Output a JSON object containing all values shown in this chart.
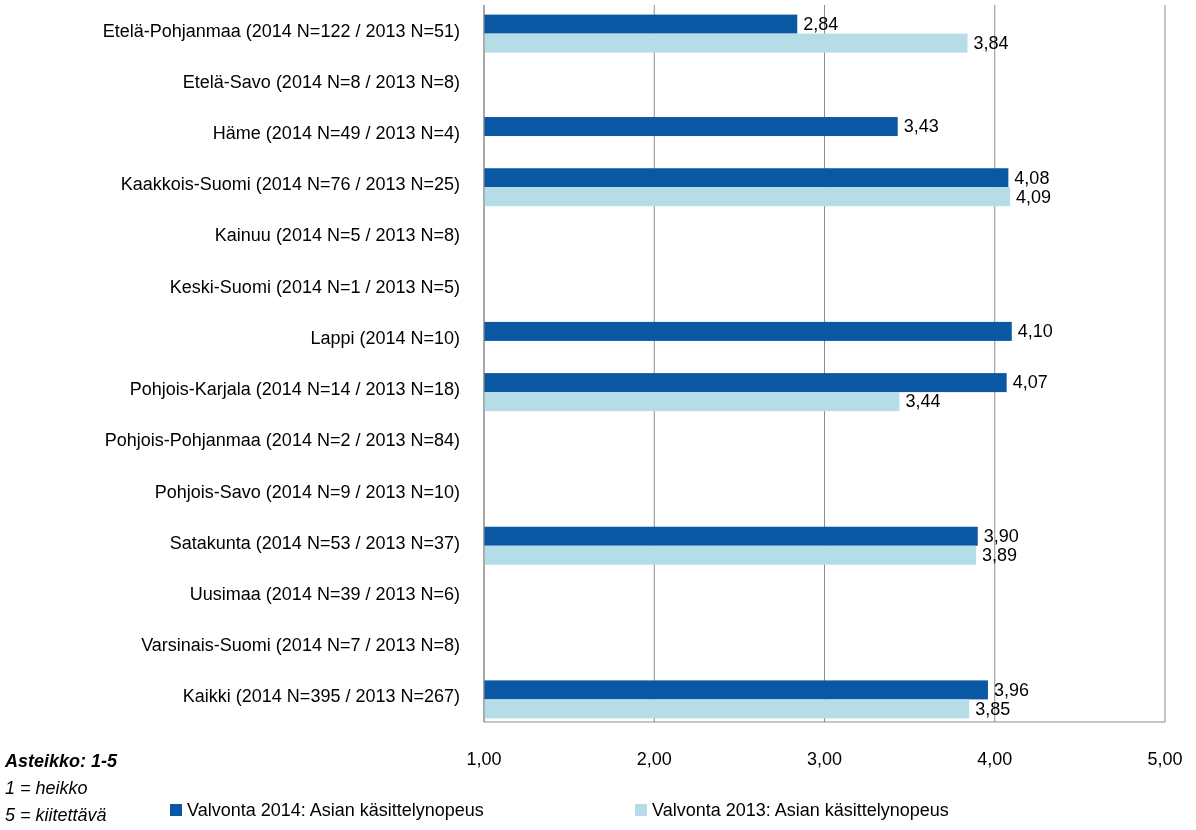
{
  "chart_data": {
    "type": "bar",
    "orientation": "horizontal",
    "categories": [
      "Etelä-Pohjanmaa (2014 N=122 / 2013 N=51)",
      "Etelä-Savo (2014 N=8 / 2013 N=8)",
      "Häme (2014 N=49 / 2013 N=4)",
      "Kaakkois-Suomi (2014 N=76 / 2013 N=25)",
      "Kainuu (2014 N=5 / 2013 N=8)",
      "Keski-Suomi (2014 N=1 / 2013 N=5)",
      "Lappi (2014 N=10)",
      "Pohjois-Karjala (2014 N=14 / 2013 N=18)",
      "Pohjois-Pohjanmaa (2014 N=2 / 2013 N=84)",
      "Pohjois-Savo (2014 N=9 / 2013 N=10)",
      "Satakunta (2014 N=53 / 2013 N=37)",
      "Uusimaa (2014 N=39 / 2013 N=6)",
      "Varsinais-Suomi (2014 N=7 / 2013 N=8)",
      "Kaikki (2014 N=395 / 2013 N=267)"
    ],
    "series": [
      {
        "name": "Valvonta 2014: Asian käsittelynopeus",
        "color": "#0a57a4",
        "values": [
          2.84,
          null,
          3.43,
          4.08,
          null,
          null,
          4.1,
          4.07,
          null,
          null,
          3.9,
          null,
          null,
          3.96
        ],
        "value_labels": [
          "2,84",
          null,
          "3,43",
          "4,08",
          null,
          null,
          "4,10",
          "4,07",
          null,
          null,
          "3,90",
          null,
          null,
          "3,96"
        ]
      },
      {
        "name": "Valvonta 2013: Asian käsittelynopeus",
        "color": "#b4dde8",
        "values": [
          3.84,
          null,
          null,
          4.09,
          null,
          null,
          null,
          3.44,
          null,
          null,
          3.89,
          null,
          null,
          3.85
        ],
        "value_labels": [
          "3,84",
          null,
          null,
          "4,09",
          null,
          null,
          null,
          "3,44",
          null,
          null,
          "3,89",
          null,
          null,
          "3,85"
        ]
      }
    ],
    "xlim": [
      1,
      5
    ],
    "xticks": [
      {
        "value": 1,
        "label": "1,00"
      },
      {
        "value": 2,
        "label": "2,00"
      },
      {
        "value": 3,
        "label": "3,00"
      },
      {
        "value": 4,
        "label": "4,00"
      },
      {
        "value": 5,
        "label": "5,00"
      }
    ],
    "grid": "x",
    "legend": "bottom",
    "annotations": [
      "Asteikko: 1-5",
      "1 = heikko",
      "5 = kiitettävä"
    ]
  }
}
